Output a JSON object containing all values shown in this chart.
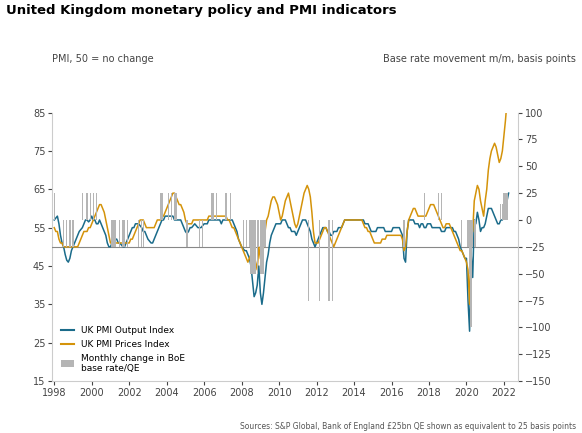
{
  "title": "United Kingdom monetary policy and PMI indicators",
  "ylabel_left": "PMI, 50 = no change",
  "ylabel_right": "Base rate movement m/m, basis points",
  "source": "Sources: S&P Global, Bank of England £25bn QE shown as equivalent to 25 basis points",
  "ylim_left": [
    15,
    85
  ],
  "ylim_right": [
    -150,
    100
  ],
  "yticks_left": [
    15,
    25,
    35,
    45,
    55,
    65,
    75,
    85
  ],
  "yticks_right": [
    -150,
    -125,
    -100,
    -75,
    -50,
    -25,
    0,
    25,
    50,
    75,
    100
  ],
  "hline_pmi": 50,
  "color_output": "#1a6b8a",
  "color_prices": "#d4930a",
  "color_bars": "#b5b5b5",
  "dates": [
    1998.0,
    1998.083,
    1998.167,
    1998.25,
    1998.333,
    1998.417,
    1998.5,
    1998.583,
    1998.667,
    1998.75,
    1998.833,
    1998.917,
    1999.0,
    1999.083,
    1999.167,
    1999.25,
    1999.333,
    1999.417,
    1999.5,
    1999.583,
    1999.667,
    1999.75,
    1999.833,
    1999.917,
    2000.0,
    2000.083,
    2000.167,
    2000.25,
    2000.333,
    2000.417,
    2000.5,
    2000.583,
    2000.667,
    2000.75,
    2000.833,
    2000.917,
    2001.0,
    2001.083,
    2001.167,
    2001.25,
    2001.333,
    2001.417,
    2001.5,
    2001.583,
    2001.667,
    2001.75,
    2001.833,
    2001.917,
    2002.0,
    2002.083,
    2002.167,
    2002.25,
    2002.333,
    2002.417,
    2002.5,
    2002.583,
    2002.667,
    2002.75,
    2002.833,
    2002.917,
    2003.0,
    2003.083,
    2003.167,
    2003.25,
    2003.333,
    2003.417,
    2003.5,
    2003.583,
    2003.667,
    2003.75,
    2003.833,
    2003.917,
    2004.0,
    2004.083,
    2004.167,
    2004.25,
    2004.333,
    2004.417,
    2004.5,
    2004.583,
    2004.667,
    2004.75,
    2004.833,
    2004.917,
    2005.0,
    2005.083,
    2005.167,
    2005.25,
    2005.333,
    2005.417,
    2005.5,
    2005.583,
    2005.667,
    2005.75,
    2005.833,
    2005.917,
    2006.0,
    2006.083,
    2006.167,
    2006.25,
    2006.333,
    2006.417,
    2006.5,
    2006.583,
    2006.667,
    2006.75,
    2006.833,
    2006.917,
    2007.0,
    2007.083,
    2007.167,
    2007.25,
    2007.333,
    2007.417,
    2007.5,
    2007.583,
    2007.667,
    2007.75,
    2007.833,
    2007.917,
    2008.0,
    2008.083,
    2008.167,
    2008.25,
    2008.333,
    2008.417,
    2008.5,
    2008.583,
    2008.667,
    2008.75,
    2008.833,
    2008.917,
    2009.0,
    2009.083,
    2009.167,
    2009.25,
    2009.333,
    2009.417,
    2009.5,
    2009.583,
    2009.667,
    2009.75,
    2009.833,
    2009.917,
    2010.0,
    2010.083,
    2010.167,
    2010.25,
    2010.333,
    2010.417,
    2010.5,
    2010.583,
    2010.667,
    2010.75,
    2010.833,
    2010.917,
    2011.0,
    2011.083,
    2011.167,
    2011.25,
    2011.333,
    2011.417,
    2011.5,
    2011.583,
    2011.667,
    2011.75,
    2011.833,
    2011.917,
    2012.0,
    2012.083,
    2012.167,
    2012.25,
    2012.333,
    2012.417,
    2012.5,
    2012.583,
    2012.667,
    2012.75,
    2012.833,
    2012.917,
    2013.0,
    2013.083,
    2013.167,
    2013.25,
    2013.333,
    2013.417,
    2013.5,
    2013.583,
    2013.667,
    2013.75,
    2013.833,
    2013.917,
    2014.0,
    2014.083,
    2014.167,
    2014.25,
    2014.333,
    2014.417,
    2014.5,
    2014.583,
    2014.667,
    2014.75,
    2014.833,
    2014.917,
    2015.0,
    2015.083,
    2015.167,
    2015.25,
    2015.333,
    2015.417,
    2015.5,
    2015.583,
    2015.667,
    2015.75,
    2015.833,
    2015.917,
    2016.0,
    2016.083,
    2016.167,
    2016.25,
    2016.333,
    2016.417,
    2016.5,
    2016.583,
    2016.667,
    2016.75,
    2016.833,
    2016.917,
    2017.0,
    2017.083,
    2017.167,
    2017.25,
    2017.333,
    2017.417,
    2017.5,
    2017.583,
    2017.667,
    2017.75,
    2017.833,
    2017.917,
    2018.0,
    2018.083,
    2018.167,
    2018.25,
    2018.333,
    2018.417,
    2018.5,
    2018.583,
    2018.667,
    2018.75,
    2018.833,
    2018.917,
    2019.0,
    2019.083,
    2019.167,
    2019.25,
    2019.333,
    2019.417,
    2019.5,
    2019.583,
    2019.667,
    2019.75,
    2019.833,
    2019.917,
    2020.0,
    2020.083,
    2020.167,
    2020.25,
    2020.333,
    2020.417,
    2020.5,
    2020.583,
    2020.667,
    2020.75,
    2020.833,
    2020.917,
    2021.0,
    2021.083,
    2021.167,
    2021.25,
    2021.333,
    2021.417,
    2021.5,
    2021.583,
    2021.667,
    2021.75,
    2021.833,
    2021.917,
    2022.0,
    2022.083,
    2022.167,
    2022.25
  ],
  "pmi_output": [
    57,
    57.5,
    58,
    56,
    53,
    51,
    50,
    48,
    46.5,
    46,
    47,
    49,
    50,
    51,
    52,
    53,
    54,
    54.5,
    55,
    56,
    57,
    57,
    56.5,
    57,
    58,
    57,
    57,
    56,
    56,
    57,
    56,
    55,
    54,
    53,
    51,
    50,
    50,
    51,
    51,
    52,
    52,
    51,
    51,
    50.5,
    50,
    50,
    51,
    52,
    53,
    54,
    55,
    55,
    56,
    56,
    56,
    55.5,
    55,
    54,
    54,
    53,
    52,
    51.5,
    51,
    51,
    52,
    53,
    54,
    55,
    56,
    57,
    57,
    58,
    58,
    58,
    58,
    58,
    58,
    57,
    57,
    57,
    57,
    57,
    56,
    55,
    54,
    53.5,
    54,
    55,
    55,
    55.5,
    56,
    55.5,
    55,
    55,
    55,
    55.5,
    56,
    56,
    56,
    57,
    57,
    57,
    57,
    57,
    57,
    57,
    57,
    56,
    57,
    57,
    57,
    57,
    57,
    57,
    57,
    56,
    55,
    54,
    52,
    51,
    50,
    49.5,
    49,
    49,
    48,
    47,
    45,
    41,
    37,
    38,
    40,
    45,
    38,
    35,
    38,
    42,
    46,
    48,
    51,
    53,
    54,
    55,
    56,
    56,
    56,
    56,
    57,
    57,
    57,
    56,
    55,
    55,
    54,
    54,
    54,
    53,
    54,
    55,
    56,
    57,
    57,
    57,
    56,
    55,
    54,
    52,
    51,
    50,
    51,
    52,
    53,
    54,
    55,
    55,
    55,
    54,
    54,
    53,
    53,
    54,
    54,
    54,
    55,
    55,
    55,
    56,
    57,
    57,
    57,
    57,
    57,
    57,
    57,
    57,
    57,
    57,
    57,
    57,
    57,
    56,
    56,
    56,
    55,
    54,
    54,
    54,
    54,
    55,
    55,
    55,
    55,
    55,
    54,
    54,
    54,
    54,
    54,
    55,
    55,
    55,
    55,
    55,
    54,
    53,
    47,
    46,
    54,
    57,
    57,
    57,
    57,
    56,
    56,
    56,
    55,
    56,
    56,
    55,
    55,
    56,
    56,
    56,
    55,
    55,
    55,
    55,
    55,
    55,
    54,
    54,
    54,
    55,
    55,
    55,
    55,
    55,
    54,
    54,
    53,
    52,
    50,
    49,
    48,
    47,
    47,
    36,
    28,
    48,
    42,
    57,
    56,
    59,
    57,
    54,
    55,
    55,
    56,
    58,
    60,
    60,
    60,
    59,
    58,
    57,
    56,
    56,
    57,
    57,
    58,
    60,
    62,
    64
  ],
  "pmi_prices": [
    55,
    54,
    54,
    52,
    51,
    51,
    50,
    50,
    50,
    50,
    50,
    50,
    50,
    50,
    50,
    50,
    51,
    52,
    53,
    54,
    54,
    54,
    55,
    55,
    56,
    57,
    58,
    59,
    60,
    61,
    61,
    60,
    59,
    57,
    55,
    53,
    51,
    51,
    51,
    51,
    51,
    51,
    51,
    51,
    51,
    51,
    51,
    51,
    51,
    52,
    52,
    53,
    54,
    55,
    56,
    57,
    57,
    57,
    56,
    55,
    55,
    55,
    55,
    55,
    55,
    56,
    57,
    57,
    57,
    58,
    58,
    59,
    60,
    61,
    62,
    63,
    64,
    64,
    63,
    62,
    61,
    61,
    60,
    59,
    57,
    56,
    56,
    56,
    56,
    57,
    57,
    57,
    57,
    57,
    57,
    57,
    57,
    57,
    57,
    58,
    58,
    58,
    58,
    58,
    58,
    58,
    58,
    58,
    58,
    58,
    58,
    57,
    57,
    56,
    55,
    55,
    54,
    53,
    52,
    51,
    50,
    49,
    48,
    47,
    46,
    47,
    48,
    50,
    48,
    46,
    44,
    50,
    47,
    46,
    50,
    54,
    57,
    58,
    60,
    62,
    63,
    63,
    62,
    61,
    59,
    57,
    58,
    60,
    62,
    63,
    64,
    62,
    60,
    58,
    56,
    55,
    56,
    58,
    60,
    62,
    64,
    65,
    66,
    65,
    63,
    59,
    54,
    51,
    51,
    51,
    52,
    53,
    54,
    55,
    55,
    54,
    53,
    52,
    51,
    50,
    51,
    52,
    53,
    54,
    55,
    56,
    57,
    57,
    57,
    57,
    57,
    57,
    57,
    57,
    57,
    57,
    57,
    57,
    56,
    55,
    55,
    54,
    54,
    53,
    52,
    51,
    51,
    51,
    51,
    51,
    52,
    52,
    52,
    53,
    53,
    53,
    53,
    53,
    53,
    53,
    53,
    53,
    53,
    52,
    49,
    50,
    54,
    57,
    58,
    59,
    60,
    60,
    59,
    58,
    58,
    58,
    58,
    58,
    58,
    59,
    60,
    61,
    61,
    61,
    60,
    59,
    58,
    57,
    56,
    55,
    55,
    56,
    56,
    56,
    55,
    54,
    53,
    52,
    51,
    50,
    49,
    49,
    48,
    47,
    46,
    44,
    35,
    53,
    54,
    62,
    64,
    66,
    65,
    62,
    60,
    58,
    62,
    65,
    70,
    73,
    75,
    76,
    77,
    76,
    74,
    72,
    73,
    75,
    79,
    83,
    88,
    92
  ],
  "bar_dates": [
    1998.0,
    1998.5,
    1998.667,
    1998.833,
    1999.0,
    1999.5,
    1999.75,
    1999.917,
    2000.083,
    2000.25,
    2001.083,
    2001.167,
    2001.25,
    2001.5,
    2001.667,
    2001.75,
    2001.917,
    2002.5,
    2002.667,
    2002.75,
    2003.667,
    2003.75,
    2004.083,
    2004.25,
    2004.417,
    2004.5,
    2005.083,
    2005.75,
    2005.917,
    2006.417,
    2006.5,
    2006.667,
    2007.167,
    2007.417,
    2008.083,
    2008.25,
    2008.417,
    2008.5,
    2008.583,
    2008.667,
    2008.75,
    2008.833,
    2008.917,
    2009.0,
    2009.083,
    2009.167,
    2009.25,
    2011.583,
    2012.167,
    2012.667,
    2012.833,
    2016.667,
    2017.75,
    2018.5,
    2018.667,
    2019.75,
    2020.083,
    2020.167,
    2020.25,
    2020.333,
    2020.417,
    2020.5,
    2021.833,
    2021.917,
    2022.0,
    2022.083,
    2022.167
  ],
  "bar_values": [
    25,
    -25,
    -25,
    -25,
    -25,
    25,
    25,
    25,
    25,
    25,
    -25,
    -25,
    -25,
    -25,
    -25,
    -25,
    -25,
    -25,
    -25,
    -25,
    25,
    25,
    25,
    25,
    25,
    25,
    -25,
    -25,
    -25,
    25,
    25,
    25,
    25,
    25,
    -25,
    -25,
    -25,
    -50,
    -50,
    -50,
    -50,
    -50,
    -25,
    -50,
    -50,
    -50,
    -25,
    -75,
    -75,
    -75,
    -75,
    -25,
    25,
    25,
    25,
    -25,
    -25,
    -50,
    -100,
    -25,
    -25,
    -25,
    15,
    15,
    25,
    25,
    25
  ],
  "xlim": [
    1997.9,
    2022.75
  ],
  "xticks": [
    1998,
    2000,
    2002,
    2004,
    2006,
    2008,
    2010,
    2012,
    2014,
    2016,
    2018,
    2020,
    2022
  ],
  "xtick_labels": [
    "1998",
    "2000",
    "2002",
    "2004",
    "2006",
    "2008",
    "2010",
    "2012",
    "2014",
    "2016",
    "2018",
    "2020",
    "2022"
  ]
}
